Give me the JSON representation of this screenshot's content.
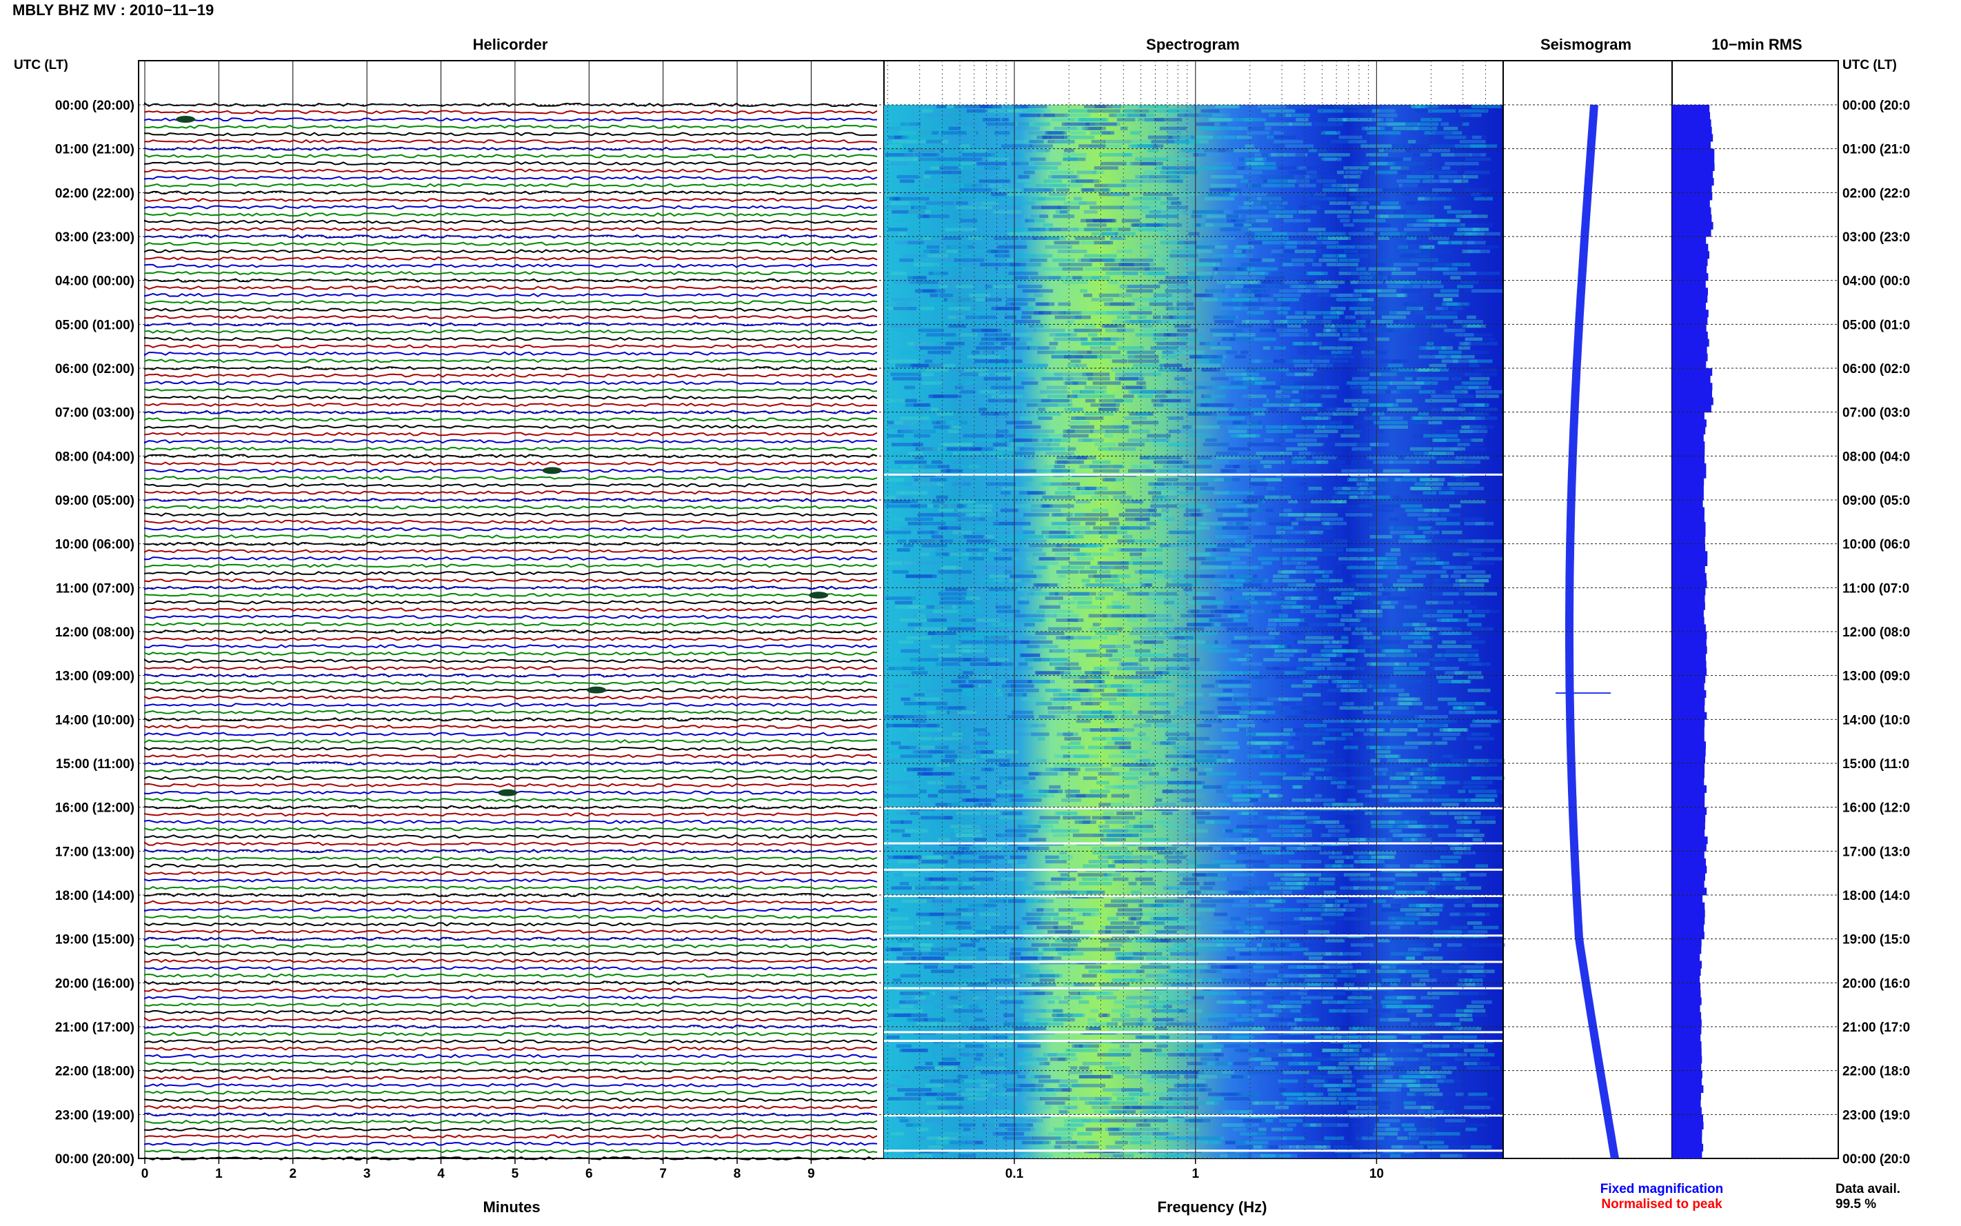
{
  "header": {
    "title": "MBLY BHZ MV : 2010−11−19"
  },
  "panels": {
    "helicorder": "Helicorder",
    "spectrogram": "Spectrogram",
    "seismogram": "Seismogram",
    "rms": "10−min RMS"
  },
  "axes": {
    "left_label": "UTC (LT)",
    "right_label": "UTC (LT)",
    "minutes_label": "Minutes",
    "frequency_label": "Frequency (Hz)",
    "minute_ticks": [
      "0",
      "1",
      "2",
      "3",
      "4",
      "5",
      "6",
      "7",
      "8",
      "9"
    ],
    "frequency_ticks": [
      "0.1",
      "1",
      "10"
    ],
    "time_labels": [
      "00:00 (20:00)",
      "01:00 (21:00)",
      "02:00 (22:00)",
      "03:00 (23:00)",
      "04:00 (00:00)",
      "05:00 (01:00)",
      "06:00 (02:00)",
      "07:00 (03:00)",
      "08:00 (04:00)",
      "09:00 (05:00)",
      "10:00 (06:00)",
      "11:00 (07:00)",
      "12:00 (08:00)",
      "13:00 (09:00)",
      "14:00 (10:00)",
      "15:00 (11:00)",
      "16:00 (12:00)",
      "17:00 (13:00)",
      "18:00 (14:00)",
      "19:00 (15:00)",
      "20:00 (16:00)",
      "21:00 (17:00)",
      "22:00 (18:00)",
      "23:00 (19:00)",
      "00:00 (20:00)"
    ],
    "time_labels_right": [
      "00:00 (20:0",
      "01:00 (21:0",
      "02:00 (22:0",
      "03:00 (23:0",
      "04:00 (00:0",
      "05:00 (01:0",
      "06:00 (02:0",
      "07:00 (03:0",
      "08:00 (04:0",
      "09:00 (05:0",
      "10:00 (06:0",
      "11:00 (07:0",
      "12:00 (08:0",
      "13:00 (09:0",
      "14:00 (10:0",
      "15:00 (11:0",
      "16:00 (12:0",
      "17:00 (13:0",
      "18:00 (14:0",
      "19:00 (15:0",
      "20:00 (16:0",
      "21:00 (17:0",
      "22:00 (18:0",
      "23:00 (19:0",
      "00:00 (20:0"
    ]
  },
  "legend": {
    "fixed": "Fixed magnification",
    "normalised": "Normalised to peak",
    "fixed_color": "#0000ff",
    "normalised_color": "#ff0000"
  },
  "availability": {
    "label": "Data avail.",
    "value": "99.5 %"
  },
  "colors": {
    "trace_cycle": [
      "#000000",
      "#aa0000",
      "#0000cc",
      "#008800"
    ],
    "spectrogram_low": "#0022cc",
    "spectrogram_high": "#99ff66",
    "seismogram": "#2233ee",
    "rms_bars": "#1a1aee"
  },
  "chart_data": {
    "type": "heatmap",
    "station": "MBLY",
    "channel": "BHZ",
    "network": "MV",
    "date": "2010-11-19",
    "helicorder": {
      "traces_per_hour": 6,
      "minutes_per_trace": 10,
      "events": [
        {
          "hour": 0.33,
          "minute": 0.55
        },
        {
          "hour": 8.33,
          "minute": 5.5
        },
        {
          "hour": 11.17,
          "minute": 9.1
        },
        {
          "hour": 13.33,
          "minute": 6.1
        },
        {
          "hour": 15.67,
          "minute": 4.9
        }
      ]
    },
    "spectrogram": {
      "freq_range_hz": [
        0.02,
        50
      ],
      "freq_scale": "log",
      "peak_band_hz": [
        0.15,
        0.6
      ],
      "data_gaps_hours": [
        8.4,
        16.0,
        16.8,
        17.4,
        18.0,
        18.9,
        19.5,
        20.1,
        21.1,
        21.3,
        23.0,
        23.8
      ]
    },
    "rms": {
      "hours": [
        0,
        1,
        2,
        3,
        4,
        5,
        6,
        7,
        8,
        9,
        10,
        11,
        12,
        13,
        14,
        15,
        16,
        17,
        18,
        19,
        20,
        21,
        22,
        23
      ],
      "relative": [
        0.95,
        1.0,
        0.96,
        0.86,
        0.84,
        0.86,
        0.95,
        0.8,
        0.8,
        0.78,
        0.82,
        0.78,
        0.82,
        0.8,
        0.78,
        0.8,
        0.82,
        0.8,
        0.76,
        0.7,
        0.7,
        0.7,
        0.72,
        0.73
      ]
    },
    "data_availability_percent": 99.5
  }
}
